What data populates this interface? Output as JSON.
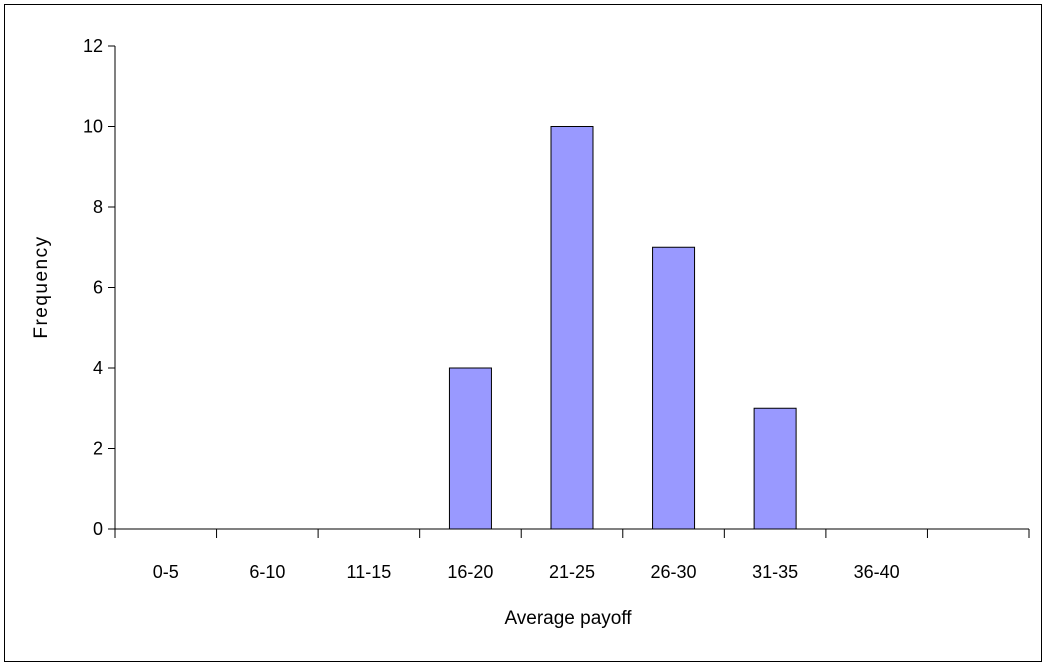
{
  "chart_data": {
    "type": "bar",
    "categories": [
      "0-5",
      "6-10",
      "11-15",
      "16-20",
      "21-25",
      "26-30",
      "31-35",
      "36-40",
      ""
    ],
    "values": [
      0,
      0,
      0,
      4,
      10,
      7,
      3,
      0,
      0
    ],
    "xlabel": "Average payoff",
    "ylabel": "Frequency",
    "ylim": [
      0,
      12
    ],
    "yticks": [
      0,
      2,
      4,
      6,
      8,
      10,
      12
    ],
    "grid": false,
    "legend": "none",
    "colors": {
      "bar_fill": "#9999ff",
      "bar_stroke": "#000000",
      "axis": "#000000"
    }
  }
}
